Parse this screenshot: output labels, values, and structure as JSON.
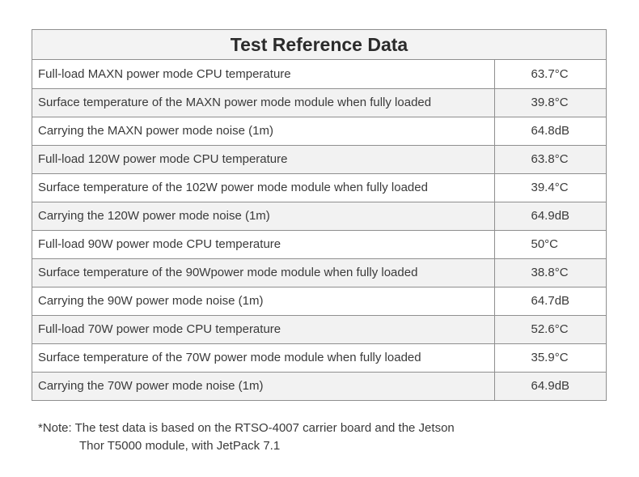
{
  "table": {
    "title": "Test Reference Data",
    "rows": [
      {
        "label": "Full-load MAXN power mode CPU temperature",
        "value": "63.7°C"
      },
      {
        "label": "Surface temperature of the MAXN power mode module when fully loaded",
        "value": "39.8°C"
      },
      {
        "label": "Carrying the MAXN power mode noise (1m)",
        "value": "64.8dB"
      },
      {
        "label": "Full-load 120W power mode CPU temperature",
        "value": "63.8°C"
      },
      {
        "label": "Surface temperature of the 102W power mode module when fully loaded",
        "value": "39.4°C"
      },
      {
        "label": "Carrying the 120W power mode noise (1m)",
        "value": "64.9dB"
      },
      {
        "label": "Full-load 90W power mode CPU temperature",
        "value": "50°C"
      },
      {
        "label": "Surface temperature of the 90Wpower mode module when fully loaded",
        "value": "38.8°C"
      },
      {
        "label": "Carrying the 90W power mode noise (1m)",
        "value": "64.7dB"
      },
      {
        "label": "Full-load 70W power mode CPU temperature",
        "value": "52.6°C"
      },
      {
        "label": "Surface temperature of the 70W power mode module when fully loaded",
        "value": "35.9°C"
      },
      {
        "label": "Carrying the 70W power mode noise (1m)",
        "value": "64.9dB"
      }
    ]
  },
  "note": {
    "line1": "*Note: The test data is based on the RTSO-4007 carrier board and the Jetson",
    "line2": "Thor T5000 module, with JetPack 7.1"
  }
}
